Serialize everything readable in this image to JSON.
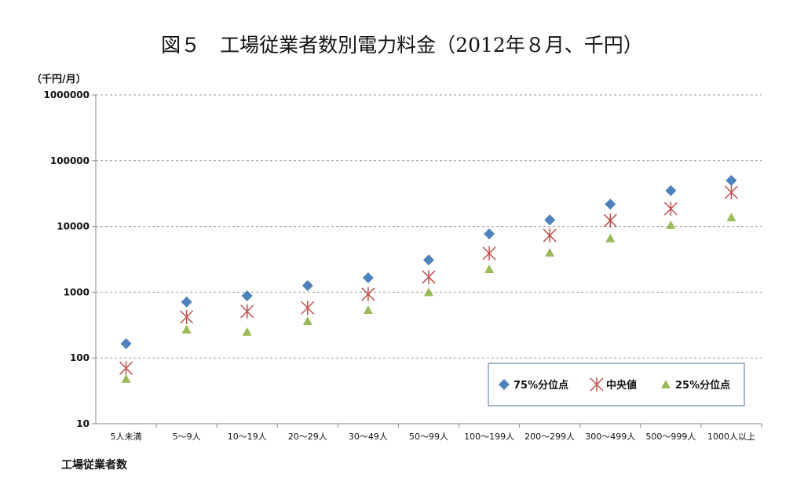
{
  "chart_data": {
    "type": "scatter",
    "title": "図５　工場従業者数別電力料金（2012年８月、千円）",
    "ylabel": "（千円/月）",
    "xlabel": "工場従業者数",
    "yscale": "log",
    "ylim": [
      10,
      1000000
    ],
    "yticks": [
      "10",
      "100",
      "1000",
      "10000",
      "100000",
      "1000000"
    ],
    "grid": true,
    "legend_position": "bottom-right",
    "categories": [
      "5人未満",
      "5～9人",
      "10～19人",
      "20～29人",
      "30～49人",
      "50～99人",
      "100～199人",
      "200～299人",
      "300～499人",
      "500～999人",
      "1000人以上"
    ],
    "series": [
      {
        "name": "75%分位点",
        "marker": "diamond",
        "color": "#4f81bd",
        "values": [
          165,
          710,
          880,
          1260,
          1660,
          3100,
          7700,
          12600,
          21800,
          35000,
          50000
        ]
      },
      {
        "name": "中央値",
        "marker": "x",
        "color": "#c0504d",
        "values": [
          70,
          420,
          510,
          580,
          930,
          1700,
          3900,
          7300,
          12300,
          18600,
          33000
        ]
      },
      {
        "name": "25%分位点",
        "marker": "triangle",
        "color": "#9bbb59",
        "values": [
          48,
          270,
          250,
          365,
          535,
          1000,
          2240,
          4000,
          6600,
          10500,
          13700
        ]
      }
    ]
  }
}
